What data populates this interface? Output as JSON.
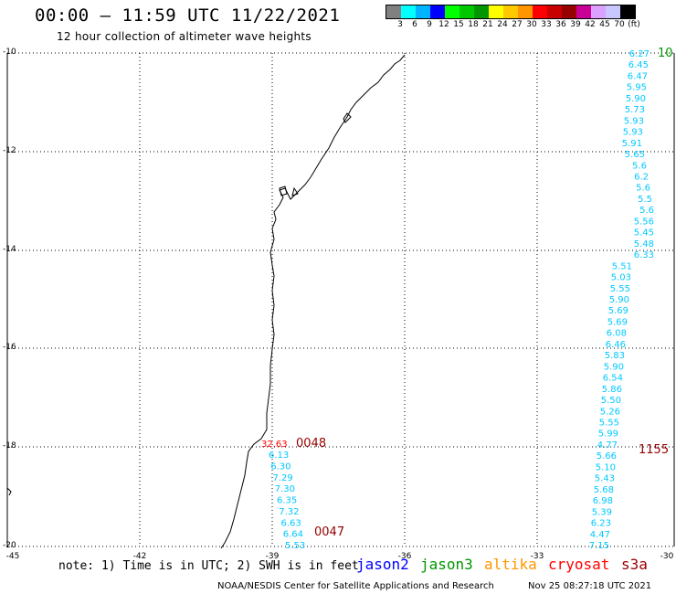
{
  "header": {
    "title": "00:00 – 11:59 UTC 11/22/2021",
    "subtitle": "12 hour collection of altimeter wave heights"
  },
  "color_scale": {
    "colors": [
      "#808080",
      "#00ffff",
      "#00b4ff",
      "#0000ff",
      "#00ff00",
      "#00c800",
      "#009600",
      "#ffff00",
      "#ffc800",
      "#ff9600",
      "#ff0000",
      "#c80000",
      "#960000",
      "#c80096",
      "#dca0ff",
      "#c8c8ff",
      "#000000"
    ],
    "labels": [
      "3",
      "6",
      "9",
      "12",
      "15",
      "18",
      "21",
      "24",
      "27",
      "30",
      "33",
      "36",
      "39",
      "42",
      "45",
      "70",
      "(ft)"
    ]
  },
  "axes": {
    "y_ticks": [
      "-10",
      "-12",
      "-14",
      "-16",
      "-18",
      "-20"
    ],
    "x_ticks": [
      "-45",
      "-42",
      "-39",
      "-36",
      "-33",
      "-30"
    ]
  },
  "tracks": {
    "east_top_time": "10",
    "east_bottom_time": "1155",
    "west_top_time": "0048",
    "west_bottom_time": "0047",
    "west_first_value": "32.63",
    "east_values": [
      "6.27",
      "6.45",
      "6.47",
      "5.95",
      "5.90",
      "5.73",
      "5.93",
      "5.93",
      "5.91",
      "5.65",
      "5.6",
      "6.2",
      "5.6",
      "5.5",
      "5.6",
      "5.56",
      "5.45",
      "5.48",
      "6.33",
      "5.51",
      "5.03",
      "5.55",
      "5.90",
      "5.69",
      "5.69",
      "6.08",
      "6.46",
      "5.83",
      "5.90",
      "6.54",
      "5.86",
      "5.50",
      "5.26",
      "5.55",
      "5.99",
      "4.77",
      "5.66",
      "5.10",
      "5.43",
      "5.68",
      "6.98",
      "5.39",
      "6.23",
      "4.47",
      "7.15"
    ],
    "west_values": [
      "6.13",
      "6.30",
      "7.29",
      "7.30",
      "6.35",
      "7.32",
      "6.63",
      "6.64",
      "5.53"
    ]
  },
  "colors": {
    "track_cyan": "#00c8ff",
    "time_red": "#960000",
    "jason2": "#0000ff",
    "jason3": "#009600",
    "altika": "#ff9600",
    "cryosat": "#ff0000",
    "s3a": "#960000"
  },
  "legend": {
    "note": "note: 1) Time is in UTC; 2) SWH is in feet",
    "satellites": [
      "jason2",
      "jason3",
      "altika",
      "cryosat",
      "s3a"
    ]
  },
  "footer": {
    "credit": "NOAA/NESDIS Center for Satellite Applications and Research",
    "timestamp": "Nov 25 08:27:18 UTC 2021"
  }
}
